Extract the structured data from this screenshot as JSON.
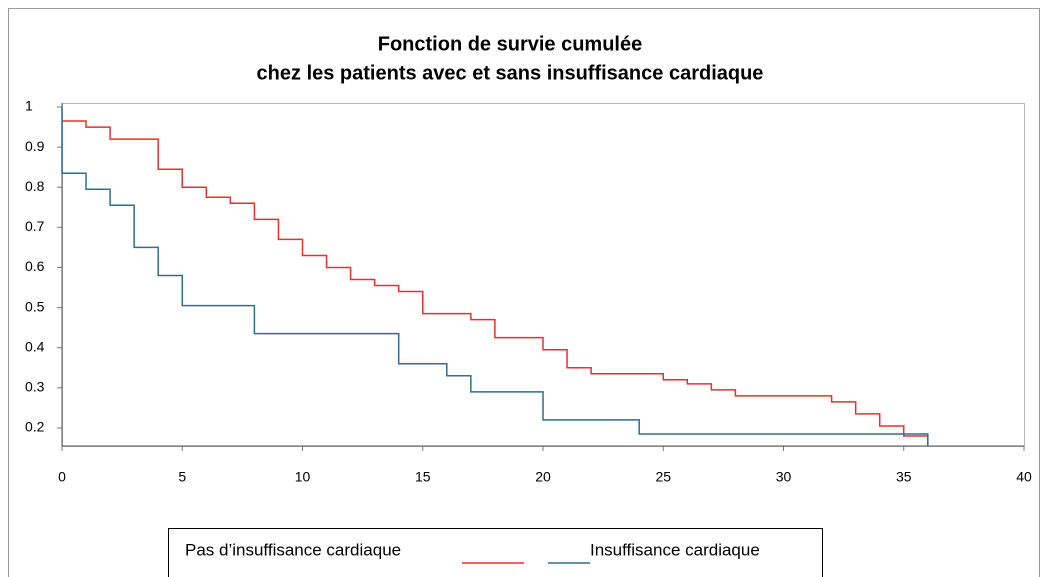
{
  "chart_data": {
    "type": "step",
    "title": [
      "Fonction de survie cumulée",
      "chez les patients avec et sans insuffisance cardiaque"
    ],
    "xlim": [
      0,
      40
    ],
    "xticks": [
      0,
      5,
      10,
      15,
      20,
      25,
      30,
      35,
      40
    ],
    "ylim": [
      0.155,
      1.01
    ],
    "yticks": [
      0.2,
      0.3,
      0.4,
      0.5,
      0.6,
      0.7,
      0.8,
      0.9,
      1
    ],
    "series": [
      {
        "name": "Pas d’insuffisance cardiaque",
        "color": "#e8302a",
        "x": [
          0,
          1,
          2,
          4,
          5,
          6,
          7,
          8,
          9,
          10,
          11,
          12,
          13,
          14,
          15,
          17,
          18,
          20,
          21,
          22,
          25,
          26,
          27,
          28,
          32,
          33,
          34,
          35,
          36
        ],
        "values": [
          0.965,
          0.95,
          0.92,
          0.845,
          0.8,
          0.775,
          0.76,
          0.72,
          0.67,
          0.63,
          0.6,
          0.57,
          0.555,
          0.54,
          0.485,
          0.47,
          0.425,
          0.395,
          0.35,
          0.335,
          0.32,
          0.31,
          0.295,
          0.28,
          0.265,
          0.235,
          0.205,
          0.18,
          0.155
        ]
      },
      {
        "name": "Insuffisance cardiaque",
        "color": "#2e6e8e",
        "x": [
          0,
          0,
          1,
          2,
          3,
          4,
          5,
          8,
          14,
          16,
          17,
          20,
          24,
          36
        ],
        "values": [
          1.0,
          0.835,
          0.795,
          0.755,
          0.65,
          0.58,
          0.505,
          0.435,
          0.36,
          0.33,
          0.29,
          0.22,
          0.185,
          0.155
        ]
      }
    ]
  }
}
